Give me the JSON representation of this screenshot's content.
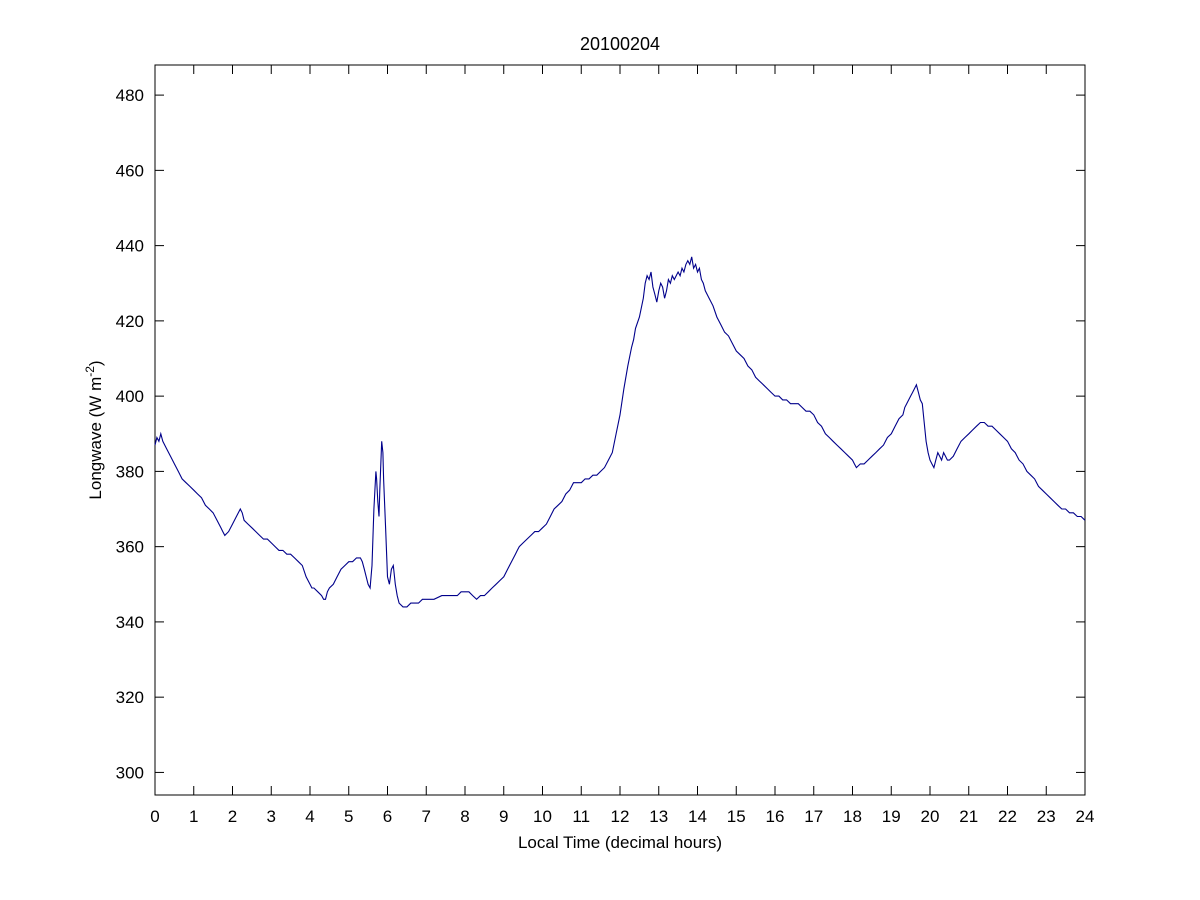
{
  "chart_data": {
    "type": "line",
    "title": "20100204",
    "xlabel": "Local Time (decimal hours)",
    "ylabel": "Longwave (W m⁻²)",
    "ylabel_parts": {
      "pre": "Longwave (W m",
      "sup": "-2",
      "post": ")"
    },
    "xlim": [
      0,
      24
    ],
    "ylim": [
      294,
      488
    ],
    "xticks": [
      0,
      1,
      2,
      3,
      4,
      5,
      6,
      7,
      8,
      9,
      10,
      11,
      12,
      13,
      14,
      15,
      16,
      17,
      18,
      19,
      20,
      21,
      22,
      23,
      24
    ],
    "yticks": [
      300,
      320,
      340,
      360,
      380,
      400,
      420,
      440,
      460,
      480
    ],
    "grid": false,
    "legend": null,
    "line_color": "#00008B",
    "series": [
      {
        "name": "Longwave",
        "points": [
          [
            0.0,
            387
          ],
          [
            0.05,
            389
          ],
          [
            0.1,
            388
          ],
          [
            0.15,
            390
          ],
          [
            0.2,
            388
          ],
          [
            0.3,
            386
          ],
          [
            0.4,
            384
          ],
          [
            0.5,
            382
          ],
          [
            0.6,
            380
          ],
          [
            0.7,
            378
          ],
          [
            0.8,
            377
          ],
          [
            0.9,
            376
          ],
          [
            1.0,
            375
          ],
          [
            1.1,
            374
          ],
          [
            1.2,
            373
          ],
          [
            1.3,
            371
          ],
          [
            1.4,
            370
          ],
          [
            1.5,
            369
          ],
          [
            1.6,
            367
          ],
          [
            1.7,
            365
          ],
          [
            1.75,
            364
          ],
          [
            1.8,
            363
          ],
          [
            1.9,
            364
          ],
          [
            2.0,
            366
          ],
          [
            2.1,
            368
          ],
          [
            2.2,
            370
          ],
          [
            2.25,
            369
          ],
          [
            2.3,
            367
          ],
          [
            2.4,
            366
          ],
          [
            2.5,
            365
          ],
          [
            2.6,
            364
          ],
          [
            2.7,
            363
          ],
          [
            2.8,
            362
          ],
          [
            2.9,
            362
          ],
          [
            3.0,
            361
          ],
          [
            3.1,
            360
          ],
          [
            3.2,
            359
          ],
          [
            3.3,
            359
          ],
          [
            3.4,
            358
          ],
          [
            3.5,
            358
          ],
          [
            3.6,
            357
          ],
          [
            3.7,
            356
          ],
          [
            3.8,
            355
          ],
          [
            3.9,
            352
          ],
          [
            4.0,
            350
          ],
          [
            4.05,
            349
          ],
          [
            4.1,
            349
          ],
          [
            4.2,
            348
          ],
          [
            4.3,
            347
          ],
          [
            4.35,
            346
          ],
          [
            4.4,
            346
          ],
          [
            4.45,
            348
          ],
          [
            4.5,
            349
          ],
          [
            4.6,
            350
          ],
          [
            4.7,
            352
          ],
          [
            4.8,
            354
          ],
          [
            4.9,
            355
          ],
          [
            5.0,
            356
          ],
          [
            5.1,
            356
          ],
          [
            5.2,
            357
          ],
          [
            5.3,
            357
          ],
          [
            5.35,
            356
          ],
          [
            5.4,
            354
          ],
          [
            5.45,
            352
          ],
          [
            5.5,
            350
          ],
          [
            5.55,
            349
          ],
          [
            5.6,
            355
          ],
          [
            5.65,
            370
          ],
          [
            5.7,
            380
          ],
          [
            5.72,
            378
          ],
          [
            5.75,
            372
          ],
          [
            5.78,
            368
          ],
          [
            5.8,
            375
          ],
          [
            5.85,
            388
          ],
          [
            5.88,
            385
          ],
          [
            5.9,
            378
          ],
          [
            5.95,
            365
          ],
          [
            6.0,
            352
          ],
          [
            6.05,
            350
          ],
          [
            6.1,
            354
          ],
          [
            6.15,
            355
          ],
          [
            6.2,
            350
          ],
          [
            6.25,
            347
          ],
          [
            6.3,
            345
          ],
          [
            6.4,
            344
          ],
          [
            6.5,
            344
          ],
          [
            6.6,
            345
          ],
          [
            6.7,
            345
          ],
          [
            6.8,
            345
          ],
          [
            6.9,
            346
          ],
          [
            7.0,
            346
          ],
          [
            7.2,
            346
          ],
          [
            7.4,
            347
          ],
          [
            7.6,
            347
          ],
          [
            7.8,
            347
          ],
          [
            7.9,
            348
          ],
          [
            8.0,
            348
          ],
          [
            8.1,
            348
          ],
          [
            8.2,
            347
          ],
          [
            8.3,
            346
          ],
          [
            8.4,
            347
          ],
          [
            8.5,
            347
          ],
          [
            8.6,
            348
          ],
          [
            8.7,
            349
          ],
          [
            8.8,
            350
          ],
          [
            8.9,
            351
          ],
          [
            9.0,
            352
          ],
          [
            9.1,
            354
          ],
          [
            9.2,
            356
          ],
          [
            9.3,
            358
          ],
          [
            9.35,
            359
          ],
          [
            9.4,
            360
          ],
          [
            9.5,
            361
          ],
          [
            9.6,
            362
          ],
          [
            9.7,
            363
          ],
          [
            9.8,
            364
          ],
          [
            9.9,
            364
          ],
          [
            10.0,
            365
          ],
          [
            10.1,
            366
          ],
          [
            10.2,
            368
          ],
          [
            10.3,
            370
          ],
          [
            10.4,
            371
          ],
          [
            10.5,
            372
          ],
          [
            10.6,
            374
          ],
          [
            10.7,
            375
          ],
          [
            10.75,
            376
          ],
          [
            10.8,
            377
          ],
          [
            10.9,
            377
          ],
          [
            11.0,
            377
          ],
          [
            11.1,
            378
          ],
          [
            11.2,
            378
          ],
          [
            11.3,
            379
          ],
          [
            11.4,
            379
          ],
          [
            11.5,
            380
          ],
          [
            11.6,
            381
          ],
          [
            11.7,
            383
          ],
          [
            11.8,
            385
          ],
          [
            11.9,
            390
          ],
          [
            12.0,
            395
          ],
          [
            12.1,
            402
          ],
          [
            12.2,
            408
          ],
          [
            12.3,
            413
          ],
          [
            12.35,
            415
          ],
          [
            12.4,
            418
          ],
          [
            12.5,
            421
          ],
          [
            12.6,
            426
          ],
          [
            12.65,
            430
          ],
          [
            12.7,
            432
          ],
          [
            12.75,
            431
          ],
          [
            12.8,
            433
          ],
          [
            12.85,
            429
          ],
          [
            12.9,
            427
          ],
          [
            12.95,
            425
          ],
          [
            13.0,
            428
          ],
          [
            13.05,
            430
          ],
          [
            13.1,
            429
          ],
          [
            13.15,
            426
          ],
          [
            13.2,
            428
          ],
          [
            13.25,
            431
          ],
          [
            13.3,
            430
          ],
          [
            13.35,
            432
          ],
          [
            13.4,
            431
          ],
          [
            13.45,
            432
          ],
          [
            13.5,
            433
          ],
          [
            13.55,
            432
          ],
          [
            13.6,
            434
          ],
          [
            13.65,
            433
          ],
          [
            13.7,
            435
          ],
          [
            13.75,
            436
          ],
          [
            13.8,
            435
          ],
          [
            13.85,
            437
          ],
          [
            13.9,
            434
          ],
          [
            13.95,
            435
          ],
          [
            14.0,
            433
          ],
          [
            14.05,
            434
          ],
          [
            14.1,
            431
          ],
          [
            14.15,
            430
          ],
          [
            14.2,
            428
          ],
          [
            14.25,
            427
          ],
          [
            14.3,
            426
          ],
          [
            14.4,
            424
          ],
          [
            14.5,
            421
          ],
          [
            14.6,
            419
          ],
          [
            14.7,
            417
          ],
          [
            14.8,
            416
          ],
          [
            14.9,
            414
          ],
          [
            15.0,
            412
          ],
          [
            15.1,
            411
          ],
          [
            15.2,
            410
          ],
          [
            15.3,
            408
          ],
          [
            15.4,
            407
          ],
          [
            15.5,
            405
          ],
          [
            15.6,
            404
          ],
          [
            15.7,
            403
          ],
          [
            15.8,
            402
          ],
          [
            15.9,
            401
          ],
          [
            16.0,
            400
          ],
          [
            16.1,
            400
          ],
          [
            16.2,
            399
          ],
          [
            16.3,
            399
          ],
          [
            16.4,
            398
          ],
          [
            16.5,
            398
          ],
          [
            16.6,
            398
          ],
          [
            16.7,
            397
          ],
          [
            16.8,
            396
          ],
          [
            16.9,
            396
          ],
          [
            17.0,
            395
          ],
          [
            17.1,
            393
          ],
          [
            17.2,
            392
          ],
          [
            17.3,
            390
          ],
          [
            17.4,
            389
          ],
          [
            17.5,
            388
          ],
          [
            17.6,
            387
          ],
          [
            17.7,
            386
          ],
          [
            17.8,
            385
          ],
          [
            17.9,
            384
          ],
          [
            18.0,
            383
          ],
          [
            18.05,
            382
          ],
          [
            18.1,
            381
          ],
          [
            18.2,
            382
          ],
          [
            18.3,
            382
          ],
          [
            18.4,
            383
          ],
          [
            18.5,
            384
          ],
          [
            18.6,
            385
          ],
          [
            18.7,
            386
          ],
          [
            18.8,
            387
          ],
          [
            18.9,
            389
          ],
          [
            19.0,
            390
          ],
          [
            19.1,
            392
          ],
          [
            19.2,
            394
          ],
          [
            19.3,
            395
          ],
          [
            19.35,
            397
          ],
          [
            19.4,
            398
          ],
          [
            19.5,
            400
          ],
          [
            19.55,
            401
          ],
          [
            19.6,
            402
          ],
          [
            19.65,
            403
          ],
          [
            19.7,
            401
          ],
          [
            19.75,
            399
          ],
          [
            19.8,
            398
          ],
          [
            19.85,
            393
          ],
          [
            19.9,
            388
          ],
          [
            19.95,
            385
          ],
          [
            20.0,
            383
          ],
          [
            20.05,
            382
          ],
          [
            20.1,
            381
          ],
          [
            20.15,
            383
          ],
          [
            20.2,
            385
          ],
          [
            20.25,
            384
          ],
          [
            20.3,
            383
          ],
          [
            20.35,
            385
          ],
          [
            20.4,
            384
          ],
          [
            20.45,
            383
          ],
          [
            20.5,
            383
          ],
          [
            20.6,
            384
          ],
          [
            20.7,
            386
          ],
          [
            20.8,
            388
          ],
          [
            20.9,
            389
          ],
          [
            21.0,
            390
          ],
          [
            21.1,
            391
          ],
          [
            21.2,
            392
          ],
          [
            21.3,
            393
          ],
          [
            21.4,
            393
          ],
          [
            21.5,
            392
          ],
          [
            21.6,
            392
          ],
          [
            21.7,
            391
          ],
          [
            21.8,
            390
          ],
          [
            21.9,
            389
          ],
          [
            22.0,
            388
          ],
          [
            22.1,
            386
          ],
          [
            22.2,
            385
          ],
          [
            22.3,
            383
          ],
          [
            22.4,
            382
          ],
          [
            22.5,
            380
          ],
          [
            22.6,
            379
          ],
          [
            22.7,
            378
          ],
          [
            22.8,
            376
          ],
          [
            22.9,
            375
          ],
          [
            23.0,
            374
          ],
          [
            23.1,
            373
          ],
          [
            23.2,
            372
          ],
          [
            23.3,
            371
          ],
          [
            23.4,
            370
          ],
          [
            23.5,
            370
          ],
          [
            23.6,
            369
          ],
          [
            23.7,
            369
          ],
          [
            23.8,
            368
          ],
          [
            23.9,
            368
          ],
          [
            24.0,
            367
          ]
        ]
      }
    ]
  }
}
